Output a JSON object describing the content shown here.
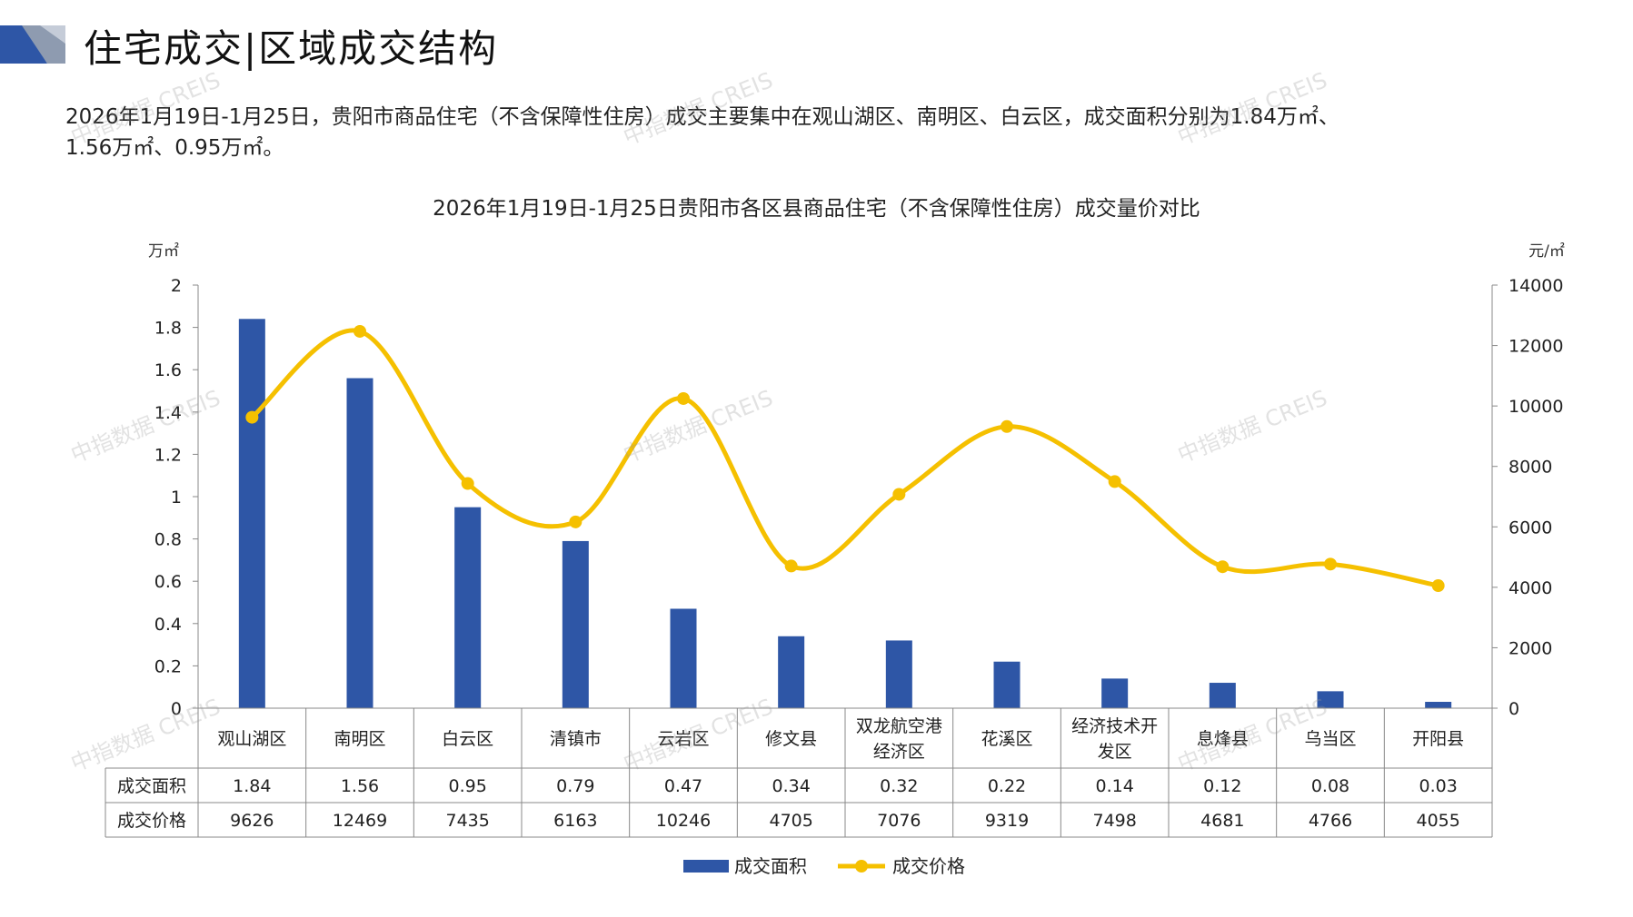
{
  "header": {
    "title": "住宅成交|区域成交结构"
  },
  "summary": {
    "line1": "2026年1月19日-1月25日，贵阳市商品住宅（不含保障性住房）成交主要集中在观山湖区、南明区、白云区，成交面积分别为1.84万㎡、",
    "line2": "1.56万㎡、0.95万㎡。"
  },
  "watermark": {
    "text": "中指数据 CREIS"
  },
  "chart_data": {
    "type": "bar",
    "title": "2026年1月19日-1月25日贵阳市各区县商品住宅（不含保障性住房）成交量价对比",
    "left_unit": "万㎡",
    "right_unit": "元/㎡",
    "categories": [
      "观山湖区",
      "南明区",
      "白云区",
      "清镇市",
      "云岩区",
      "修文县",
      "双龙航空港经济区",
      "花溪区",
      "经济技术开发区",
      "息烽县",
      "乌当区",
      "开阳县"
    ],
    "category_lines": [
      [
        "观山湖区"
      ],
      [
        "南明区"
      ],
      [
        "白云区"
      ],
      [
        "清镇市"
      ],
      [
        "云岩区"
      ],
      [
        "修文县"
      ],
      [
        "双龙航空港",
        "经济区"
      ],
      [
        "花溪区"
      ],
      [
        "经济技术开",
        "发区"
      ],
      [
        "息烽县"
      ],
      [
        "乌当区"
      ],
      [
        "开阳县"
      ]
    ],
    "left_ticks": [
      "0",
      "0.2",
      "0.4",
      "0.6",
      "0.8",
      "1",
      "1.2",
      "1.4",
      "1.6",
      "1.8",
      "2"
    ],
    "right_ticks": [
      "0",
      "2000",
      "4000",
      "6000",
      "8000",
      "10000",
      "12000",
      "14000"
    ],
    "ylim_left": [
      0,
      2
    ],
    "ylim_right": [
      0,
      14000
    ],
    "series": [
      {
        "name": "成交面积",
        "type": "bar",
        "axis": "left",
        "color": "#2E56A6",
        "values": [
          1.84,
          1.56,
          0.95,
          0.79,
          0.47,
          0.34,
          0.32,
          0.22,
          0.14,
          0.12,
          0.08,
          0.03
        ],
        "labels": [
          "1.84",
          "1.56",
          "0.95",
          "0.79",
          "0.47",
          "0.34",
          "0.32",
          "0.22",
          "0.14",
          "0.12",
          "0.08",
          "0.03"
        ]
      },
      {
        "name": "成交价格",
        "type": "line",
        "axis": "right",
        "color": "#F5C000",
        "values": [
          9626,
          12469,
          7435,
          6163,
          10246,
          4705,
          7076,
          9319,
          7498,
          4681,
          4766,
          4055
        ],
        "labels": [
          "9626",
          "12469",
          "7435",
          "6163",
          "10246",
          "4705",
          "7076",
          "9319",
          "7498",
          "4681",
          "4766",
          "4055"
        ]
      }
    ],
    "legend_position": "bottom-center"
  }
}
